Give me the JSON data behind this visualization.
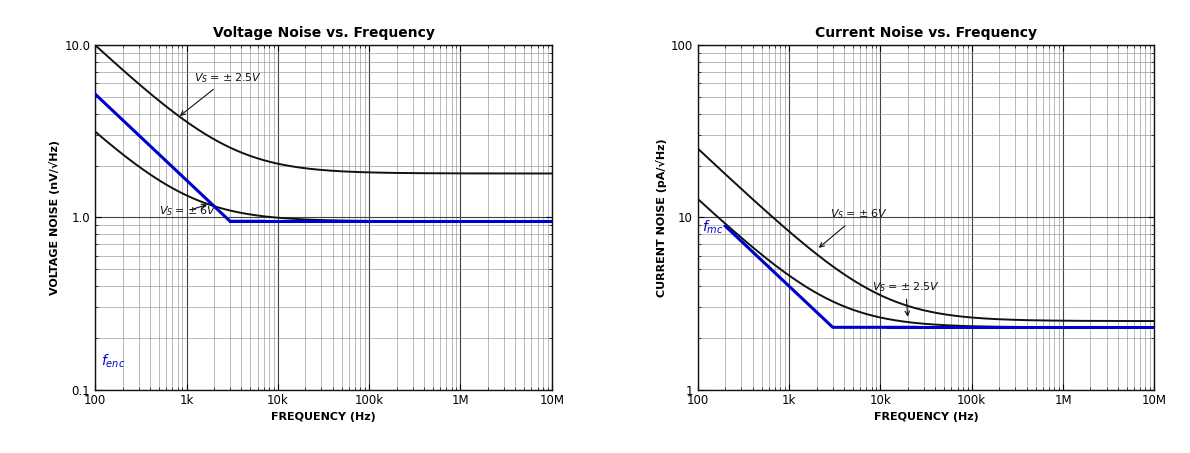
{
  "left_title": "Voltage Noise vs. Frequency",
  "right_title": "Current Noise vs. Frequency",
  "left_xlabel": "FREQUENCY (Hz)",
  "right_xlabel": "FREQUENCY (Hz)",
  "left_ylabel": "VOLTAGE NOISE (nV/√Hz)",
  "right_ylabel": "CURRENT NOISE (pA/√Hz)",
  "left_xlim": [
    100,
    10000000.0
  ],
  "right_xlim": [
    100,
    10000000.0
  ],
  "left_ylim": [
    0.1,
    10.0
  ],
  "right_ylim": [
    1.0,
    100.0
  ],
  "line_color_black": "#111111",
  "line_color_blue": "#0000cc",
  "annotation_color": "#0000cc",
  "title_fontsize": 10,
  "label_fontsize": 8,
  "tick_fontsize": 8.5,
  "background_color": "#ffffff",
  "grid_major_color": "#444444",
  "grid_minor_color": "#888888",
  "xtick_labels": [
    "100",
    "1k",
    "10k",
    "100k",
    "1M",
    "10M"
  ],
  "xtick_vals": [
    100,
    1000,
    10000,
    100000,
    1000000,
    10000000
  ],
  "left_ytick_vals": [
    0.1,
    1.0,
    10.0
  ],
  "left_ytick_labels": [
    "0.1",
    "1.0",
    "10.0"
  ],
  "right_ytick_vals": [
    1,
    10,
    100
  ],
  "right_ytick_labels": [
    "1",
    "10",
    "100"
  ]
}
